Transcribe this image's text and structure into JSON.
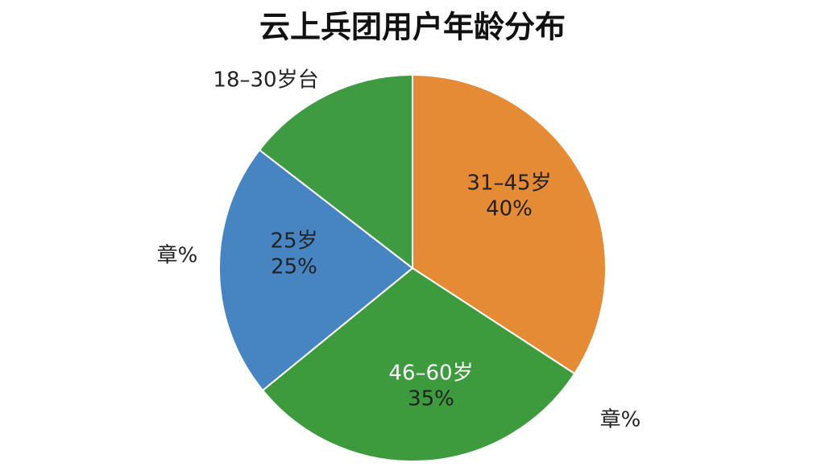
{
  "chart_data": {
    "type": "pie",
    "title": "云上兵团用户年龄分布",
    "categories": [
      "31–45岁",
      "46–60岁",
      "25岁",
      "18–30岁台"
    ],
    "values": [
      40,
      35,
      25,
      17
    ],
    "value_labels": [
      "40%",
      "35%",
      "25%",
      null
    ],
    "colors": [
      "#e58a35",
      "#3d9a3d",
      "#4784c2",
      "#3f9b42"
    ],
    "annotations": [
      "章%",
      "章%"
    ]
  }
}
